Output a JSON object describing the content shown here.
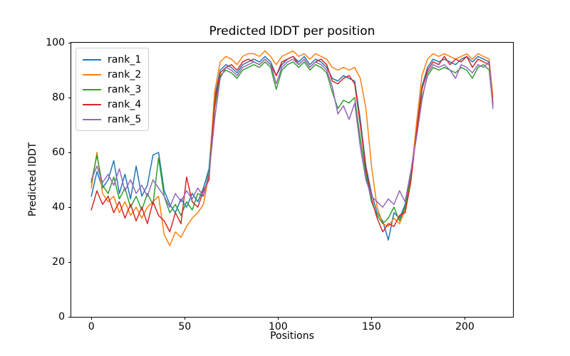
{
  "figure": {
    "background": "#ffffff"
  },
  "chart_data": {
    "type": "line",
    "title": "Predicted lDDT per position",
    "xlabel": "Positions",
    "ylabel": "Predicted lDDT",
    "xlim": [
      -10.75,
      225.75
    ],
    "ylim": [
      0,
      100
    ],
    "xticks": [
      0,
      50,
      100,
      150,
      200
    ],
    "yticks": [
      0,
      20,
      40,
      60,
      80,
      100
    ],
    "grid": false,
    "legend_position": "upper-left",
    "line_width": 1.5,
    "x": [
      0,
      3,
      6,
      9,
      12,
      15,
      18,
      21,
      24,
      27,
      30,
      33,
      36,
      39,
      42,
      45,
      48,
      51,
      54,
      57,
      60,
      63,
      66,
      69,
      72,
      75,
      78,
      81,
      84,
      87,
      90,
      93,
      96,
      99,
      102,
      105,
      108,
      111,
      114,
      117,
      120,
      123,
      126,
      129,
      132,
      135,
      138,
      141,
      144,
      147,
      150,
      153,
      156,
      159,
      162,
      165,
      168,
      171,
      174,
      177,
      180,
      183,
      186,
      189,
      192,
      195,
      198,
      201,
      204,
      207,
      210,
      213,
      215
    ],
    "series": [
      {
        "name": "rank_1",
        "color": "#1f77b4",
        "values": [
          44,
          53,
          47,
          50,
          57,
          45,
          52,
          43,
          55,
          44,
          48,
          59,
          60,
          46,
          41,
          38,
          43,
          40,
          45,
          42,
          47,
          54,
          80,
          90,
          92,
          91,
          89,
          92,
          93,
          94,
          93,
          95,
          93,
          88,
          92,
          94,
          95,
          93,
          95,
          92,
          94,
          93,
          91,
          87,
          86,
          88,
          87,
          86,
          72,
          55,
          45,
          38,
          35,
          28,
          38,
          36,
          41,
          52,
          68,
          84,
          91,
          94,
          93,
          94,
          93,
          92,
          94,
          95,
          93,
          95,
          94,
          93,
          77
        ]
      },
      {
        "name": "rank_2",
        "color": "#ff7f0e",
        "values": [
          47,
          60,
          45,
          42,
          44,
          38,
          42,
          37,
          40,
          36,
          40,
          42,
          44,
          30,
          26,
          31,
          29,
          33,
          36,
          38,
          41,
          52,
          82,
          93,
          95,
          94,
          92,
          95,
          96,
          96,
          95,
          97,
          95,
          92,
          95,
          96,
          97,
          95,
          96,
          94,
          96,
          95,
          94,
          91,
          90,
          91,
          90,
          91,
          87,
          76,
          55,
          40,
          34,
          33,
          36,
          34,
          39,
          50,
          70,
          88,
          94,
          96,
          95,
          96,
          95,
          94,
          95,
          96,
          94,
          96,
          95,
          94,
          80
        ]
      },
      {
        "name": "rank_3",
        "color": "#2ca02c",
        "values": [
          49,
          59,
          48,
          45,
          51,
          43,
          47,
          40,
          44,
          39,
          45,
          41,
          58,
          44,
          38,
          41,
          37,
          42,
          39,
          45,
          44,
          53,
          76,
          88,
          90,
          89,
          87,
          90,
          91,
          92,
          91,
          93,
          91,
          83,
          90,
          92,
          93,
          91,
          93,
          90,
          92,
          91,
          89,
          82,
          76,
          79,
          78,
          80,
          65,
          52,
          42,
          37,
          34,
          36,
          40,
          35,
          40,
          51,
          66,
          80,
          88,
          91,
          90,
          91,
          90,
          89,
          91,
          90,
          87,
          91,
          92,
          90,
          77
        ]
      },
      {
        "name": "rank_4",
        "color": "#d62728",
        "values": [
          39,
          46,
          41,
          44,
          38,
          42,
          36,
          41,
          35,
          40,
          34,
          42,
          37,
          35,
          31,
          38,
          34,
          51,
          42,
          40,
          46,
          50,
          78,
          89,
          91,
          92,
          90,
          93,
          94,
          93,
          92,
          94,
          92,
          88,
          93,
          94,
          95,
          92,
          94,
          91,
          93,
          94,
          92,
          86,
          85,
          87,
          88,
          85,
          70,
          54,
          43,
          36,
          31,
          34,
          33,
          37,
          38,
          49,
          67,
          83,
          90,
          93,
          92,
          95,
          92,
          94,
          93,
          95,
          91,
          94,
          93,
          92,
          78
        ]
      },
      {
        "name": "rank_5",
        "color": "#9467bd",
        "values": [
          50,
          55,
          49,
          52,
          48,
          54,
          46,
          50,
          45,
          48,
          44,
          50,
          47,
          44,
          40,
          45,
          42,
          46,
          43,
          47,
          44,
          52,
          72,
          87,
          91,
          90,
          88,
          91,
          92,
          93,
          92,
          94,
          92,
          85,
          91,
          93,
          94,
          92,
          94,
          91,
          93,
          92,
          90,
          84,
          74,
          77,
          72,
          78,
          62,
          50,
          44,
          42,
          40,
          43,
          41,
          46,
          42,
          53,
          65,
          79,
          89,
          92,
          91,
          92,
          90,
          87,
          92,
          91,
          89,
          92,
          91,
          93,
          76
        ]
      }
    ]
  }
}
